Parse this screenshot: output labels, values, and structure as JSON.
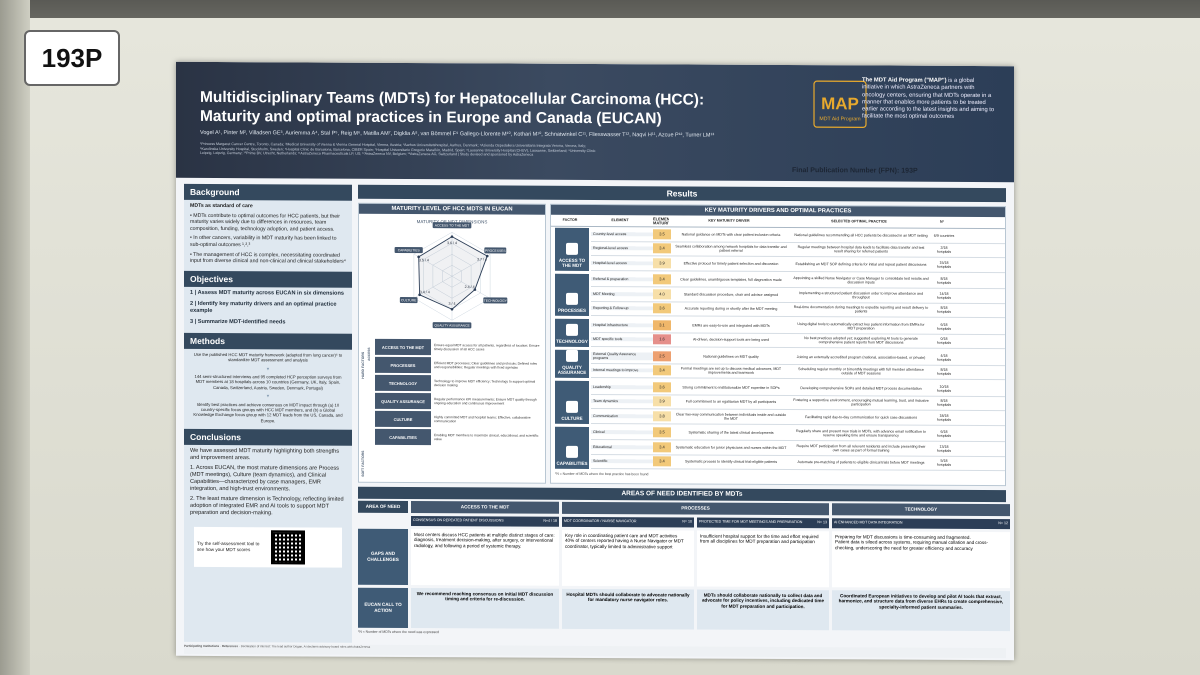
{
  "placard": "193P",
  "poster": {
    "title_line1": "Multidisciplinary Teams (MDTs) for Hepatocellular Carcinoma (HCC):",
    "title_line2": "Maturity and optimal practices in Europe and Canada (EUCAN)",
    "authors": "Vogel A¹, Pinter M², Villadsen GE³, Auriemma A⁴, Stal P⁵, Reig M⁶, Matilla AM⁷, Digklia A⁸, van Bömmel F⁹ Gallego-Llorente M¹⁰, Kothari M¹⁰, Schnatwinkel C¹¹, Fliesswasser T¹², Naqvi H¹¹, Azcue P¹², Turner LM¹³",
    "affiliations": "¹Princess Margaret Cancer Centre, Toronto, Canada; ²Medical University of Vienna & Vienna General Hospital, Vienna, Austria; ³Aarhus Universitetshospital, Aarhus, Denmark; ⁴Azienda Ospedaliera Universitaria Integrata Verona, Verona, Italy; ⁵Karolinska University Hospital, Stockholm, Sweden; ⁶Hospital Clínic de Barcelona, Barcelona, CIBER Spain; ⁷Hospital Universitario Gregorio Marañón, Madrid, Spain; ⁸Lausanne University Hospital (CHUV), Lausanne, Switzerland; ⁹University Clinic Leipzig, Leipzig, Germany; ¹⁰Prime BV, Utrecht, Netherlands; ¹¹AstraZeneca Pharmaceuticals LP, US; ¹²AstraZeneca NV, Belgium; ¹³AstraZeneca AG, Switzerland | Study devised and sponsored by AstraZeneca",
    "fpn": "Final Publication Number (FPN): 193P",
    "map_logo_text": "MAP",
    "map_logo_sub": "MDT Aid Program",
    "map_blurb_bold": "The MDT Aid Program (\"MAP\")",
    "map_blurb": "is a global initiative in which AstraZeneca partners with oncology centers, ensuring that MDTs operate in a manner that enables more patients to be treated earlier according to the latest insights and aiming to facilitate the most optimal outcomes"
  },
  "background": {
    "heading": "Background",
    "p1_bold": "MDTs as standard of care",
    "b1": "MDTs contribute to optimal outcomes for HCC patients, but their maturity varies widely due to differences in resources, team composition, funding, technology adoption, and patient access.",
    "b2": "In other cancers, variability in MDT maturity has been linked to sub-optimal outcomes ¹,²,³",
    "b3": "The management of HCC is complex, necessitating coordinated input from diverse clinical and non-clinical and clinical stakeholders⁴"
  },
  "objectives": {
    "heading": "Objectives",
    "o1": "1 | Assess MDT maturity across EUCAN in six dimensions",
    "o2": "2 | Identify key maturity drivers and an optimal practice example",
    "o3": "3 | Summarize MDT-identified needs"
  },
  "methods": {
    "heading": "Methods",
    "m1": "Use the published HCC MDT maturity framework (adapted from lung cancer)⁵ to standardize MDT assessment and analysis",
    "m2": "144 semi-structured interviews and 95 completed HCP perception surveys from MDT members at 18 hospitals across 10 countries (Germany, UK, Italy, Spain, Canada, Switzerland, Austria, Sweden, Denmark, Portugal)",
    "m3": "Identify best practices and achieve consensus on MDT impact through (a) 10 country-specific focus groups with HCC MDT members, and (b) a Global Knowledge Exchange focus group with 12 MDT leads from the US, Canada, and Europe."
  },
  "conclusions": {
    "heading": "Conclusions",
    "c0": "We have assessed MDT maturity highlighting both strengths and improvement areas.",
    "c1": "Across EUCAN, the most mature dimensions are Process (MDT meetings), Culture (team dynamics), and Clinical Capabilities—characterized by case managers, EMR integration, and high-trust environments.",
    "c2": "The least mature dimension is Technology, reflecting limited adoption of integrated EMR and AI tools to support MDT preparation and decision-making.",
    "try": "Try the self-assessment tool to see how your MDT scores"
  },
  "results": {
    "heading": "Results",
    "maturity_title": "MATURITY LEVEL OF HCC MDTS IN EUCAN",
    "radar_title": "MATURITY OF MDT DIMENSIONS",
    "drivers_title": "KEY MATURITY DRIVERS AND OPTIMAL PRACTICES",
    "cols": [
      "FACTOR",
      "ELEMENT",
      "ELEMENT MATURITY",
      "KEY MATURITY DRIVER",
      "SELECTED OPTIMAL PRACTICE",
      "N°"
    ],
    "footnote": "*N = Number of MDTs where the best practice has been found",
    "hard_factors": "HARD FACTORS",
    "soft_factors": "SOFT FACTORS",
    "access_lbl": "ACCESS",
    "factor_list": [
      {
        "label": "ACCESS TO THE MDT",
        "desc": "Ensure equal MDT access for all patients, regardless of location; Ensure timely discussion of all HCC cases"
      },
      {
        "label": "PROCESSES",
        "desc": "Efficient MDT processes; Clear guidelines and protocols; Defined roles and responsibilities; Regular meetings with fixed agendas"
      },
      {
        "label": "TECHNOLOGY",
        "desc": "Technology to improve MDT efficiency; Technology to support optimal decision making"
      },
      {
        "label": "QUALITY ASSURANCE",
        "desc": "Regular performance KPI measurements; Ensure MDT quality through ongoing education and continuous improvement"
      },
      {
        "label": "CULTURE",
        "desc": "Highly committed MDT and hospital teams; Effective, collaborative communication"
      },
      {
        "label": "CAPABILITIES",
        "desc": "Enabling MDT members to maximize clinical, educational, and scientific value"
      }
    ]
  },
  "chart_data": {
    "type": "radar",
    "title": "MATURITY OF MDT DIMENSIONS",
    "categories": [
      "ACCESS TO THE MDT",
      "PROCESSES",
      "TECHNOLOGY",
      "QUALITY ASSURANCE",
      "CULTURE",
      "CAPABILITIES"
    ],
    "values": [
      3.6,
      3.7,
      2.4,
      3.0,
      3.4,
      3.5
    ],
    "labels": [
      "3.6 / 4",
      "3.7 / 4",
      "2.4 / 4",
      "3 / 4",
      "3.4 / 4",
      "3.5 / 4"
    ],
    "rmax": 4
  },
  "drivers": [
    {
      "factor": "ACCESS TO THE MDT",
      "rows": [
        {
          "element": "Country-level access",
          "score": "3.5",
          "color": "#f2c97a",
          "driver": "National guidance on MDTs with clear patient inclusion criteria",
          "practice": "National guidelines recommending all HCC patients be discussed in an MDT setting",
          "n": "6/9 countries"
        },
        {
          "element": "Regional-level access",
          "score": "3.4",
          "color": "#f2c97a",
          "driver": "Seamless collaboration among network hospitals for data transfer and patient referral",
          "practice": "Regular meetings between hospital data leads to facilitate data transfer and test result sharing for referred patients",
          "n": "2/18 hospitals"
        },
        {
          "element": "Hospital-level access",
          "score": "3.9",
          "color": "#f7dfa8",
          "driver": "Effective protocol for timely patient selection and discussion",
          "practice": "Establishing an MDT SOP defining criteria for initial and repeat patient discussions",
          "n": "15/18 hospitals"
        }
      ]
    },
    {
      "factor": "PROCESSES",
      "rows": [
        {
          "element": "Referral & preparation",
          "score": "3.4",
          "color": "#f2c97a",
          "driver": "Clear guidelines, unambiguous templates, full diagnostics made",
          "practice": "Appointing a skilled Nurse Navigator or Case Manager to consolidate test results and discussion inputs",
          "n": "8/18 hospitals"
        },
        {
          "element": "MDT Meeting",
          "score": "4.0",
          "color": "#f7dfa8",
          "driver": "Standard discussion procedure, chair and advisor assigned",
          "practice": "Implementing a structured patient discussion order to improve attendance and throughput",
          "n": "14/18 hospitals"
        },
        {
          "element": "Reporting & Follow-up",
          "score": "3.6",
          "color": "#f2c97a",
          "driver": "Accurate reporting during or shortly after the MDT meeting",
          "practice": "Real-time documentation during meetings to expedite reporting and result delivery to patients",
          "n": "8/18 hospitals"
        }
      ]
    },
    {
      "factor": "TECHNOLOGY",
      "rows": [
        {
          "element": "Hospital infrastructure",
          "score": "3.1",
          "color": "#f0b76a",
          "driver": "EMRs are easy-to-use and integrated with MDTs",
          "practice": "Using digital tools to automatically extract key patient information from EMRs for MDT preparation",
          "n": "6/18 hospitals"
        },
        {
          "element": "MDT specific tools",
          "score": "1.6",
          "color": "#e58f8a",
          "driver": "AI-driven, decision-support tools are being used",
          "practice": "No best practices adopted yet; suggested exploring AI tools to generate comprehensive patient reports from MDT discussions",
          "n": "0/18 hospitals"
        }
      ]
    },
    {
      "factor": "QUALITY ASSURANCE",
      "rows": [
        {
          "element": "External Quality Assurance programs",
          "score": "2.5",
          "color": "#eda070",
          "driver": "National guidelines on MDT quality",
          "practice": "Joining an externally accredited program (national, association-based, or private)",
          "n": "4/18 hospitals"
        },
        {
          "element": "Internal meetings to improve",
          "score": "3.4",
          "color": "#f2c97a",
          "driver": "Formal meetings are set up to discuss medical advances, MDT improvements and teamwork",
          "practice": "Scheduling regular monthly or bimonthly meetings with full member attendance outside of MDT sessions",
          "n": "8/18 hospitals"
        }
      ]
    },
    {
      "factor": "CULTURE",
      "rows": [
        {
          "element": "Leadership",
          "score": "3.6",
          "color": "#f2c97a",
          "driver": "Strong commitment to institutionalize MDT expertise in SOPs",
          "practice": "Developing comprehensive SOPs and detailed MDT process documentation",
          "n": "10/18 hospitals"
        },
        {
          "element": "Team dynamics",
          "score": "3.9",
          "color": "#f7dfa8",
          "driver": "Full commitment to an egalitarian MDT by all participants",
          "practice": "Fostering a supportive environment, encouraging mutual learning, trust, and inclusive participation",
          "n": "8/18 hospitals"
        },
        {
          "element": "Communication",
          "score": "3.8",
          "color": "#f7dfa8",
          "driver": "Clear two-way communication between individuals inside and outside the MDT",
          "practice": "Facilitating rapid day-to-day communication for quick case discussions",
          "n": "18/18 hospitals"
        }
      ]
    },
    {
      "factor": "CAPABILITIES",
      "rows": [
        {
          "element": "Clinical",
          "score": "3.5",
          "color": "#f2c97a",
          "driver": "Systematic sharing of the latest clinical developments",
          "practice": "Regularly share and present new trials in MDTs, with advance email notification to reserve speaking time and ensure transparency",
          "n": "6/18 hospitals"
        },
        {
          "element": "Educational",
          "score": "3.4",
          "color": "#f2c97a",
          "driver": "Systematic education for junior physicians and nurses within the MDT",
          "practice": "Require MDT participation from all relevant residents and include presenting their own cases as part of formal training",
          "n": "13/18 hospitals"
        },
        {
          "element": "Scientific",
          "score": "3.4",
          "color": "#f2c97a",
          "driver": "Systematic process to identify clinical trial-eligible patients",
          "practice": "Automate pre-matching of patients to eligible clinical trials before MDT meetings",
          "n": "5/18 hospitals"
        }
      ]
    }
  ],
  "needs": {
    "heading": "AREAS OF NEED IDENTIFIED BY MDTs",
    "area_label": "AREA OF NEED",
    "gaps_label": "GAPS AND CHALLENGES",
    "eucan_label": "EUCAN CALL TO ACTION",
    "col_access": "ACCESS TO THE MDT",
    "col_processes": "PROCESSES",
    "col_technology": "TECHNOLOGY",
    "sub_access": "CONSENSUS ON REPEATED PATIENT DISCUSSIONS",
    "sub_nurse": "MDT COORDINATOR / NURSE NAVIGATOR",
    "sub_time": "PROTECTED TIME FOR MDT MEETINGS AND PREPARATION",
    "sub_ai": "AI ENHANCED MDT DATA INTEGRATION",
    "badge_access": "N=4 / 18",
    "badge_nurse": "N= 10",
    "badge_time": "N= 13",
    "badge_ai": "N= 12",
    "gap_access": "Most centers discuss HCC patients at multiple distinct stages of care: diagnosis, treatment decision-making, after surgery, or interventional radiology, and following a period of systemic therapy.",
    "gap_nurse": "Key role in coordinating patient care and MDT activities\n40% of centers reported having a Nurse Navigator or MDT coordinator, typically limited to administrative support",
    "gap_time": "Insufficient hospital support for the time and effort required from all disciplines for MDT preparation and participation",
    "gap_ai": "Preparing for MDT discussions is time-consuming and fragmented.\nPatient data is siloed across systems, requiring manual collation and cross-checking, underscoring the need for greater efficiency and accuracy",
    "cta_access": "We recommend reaching consensus on initial MDT discussion timing and criteria for re-discussion.",
    "cta_nurse": "Hospital MDTs should collaborate to advocate nationally for mandatory nurse navigator roles.",
    "cta_time": "MDTs should collaborate nationally to collect data and advocate for policy incentives, including dedicated time for MDT preparation and participation.",
    "cta_ai": "Coordinated European initiatives to develop and pilot AI tools that extract, harmonize, and structure data from diverse EHRs to create comprehensive, specialty-informed patient summaries.",
    "footnote": "*N = Number of MDTs where the need was expressed"
  },
  "footer": {
    "participating": "Participating Institutions",
    "references": "References",
    "declaration": "Declaration of interest: The lead author Dogan, Ai declares advisory board roles with AstraZeneca"
  }
}
